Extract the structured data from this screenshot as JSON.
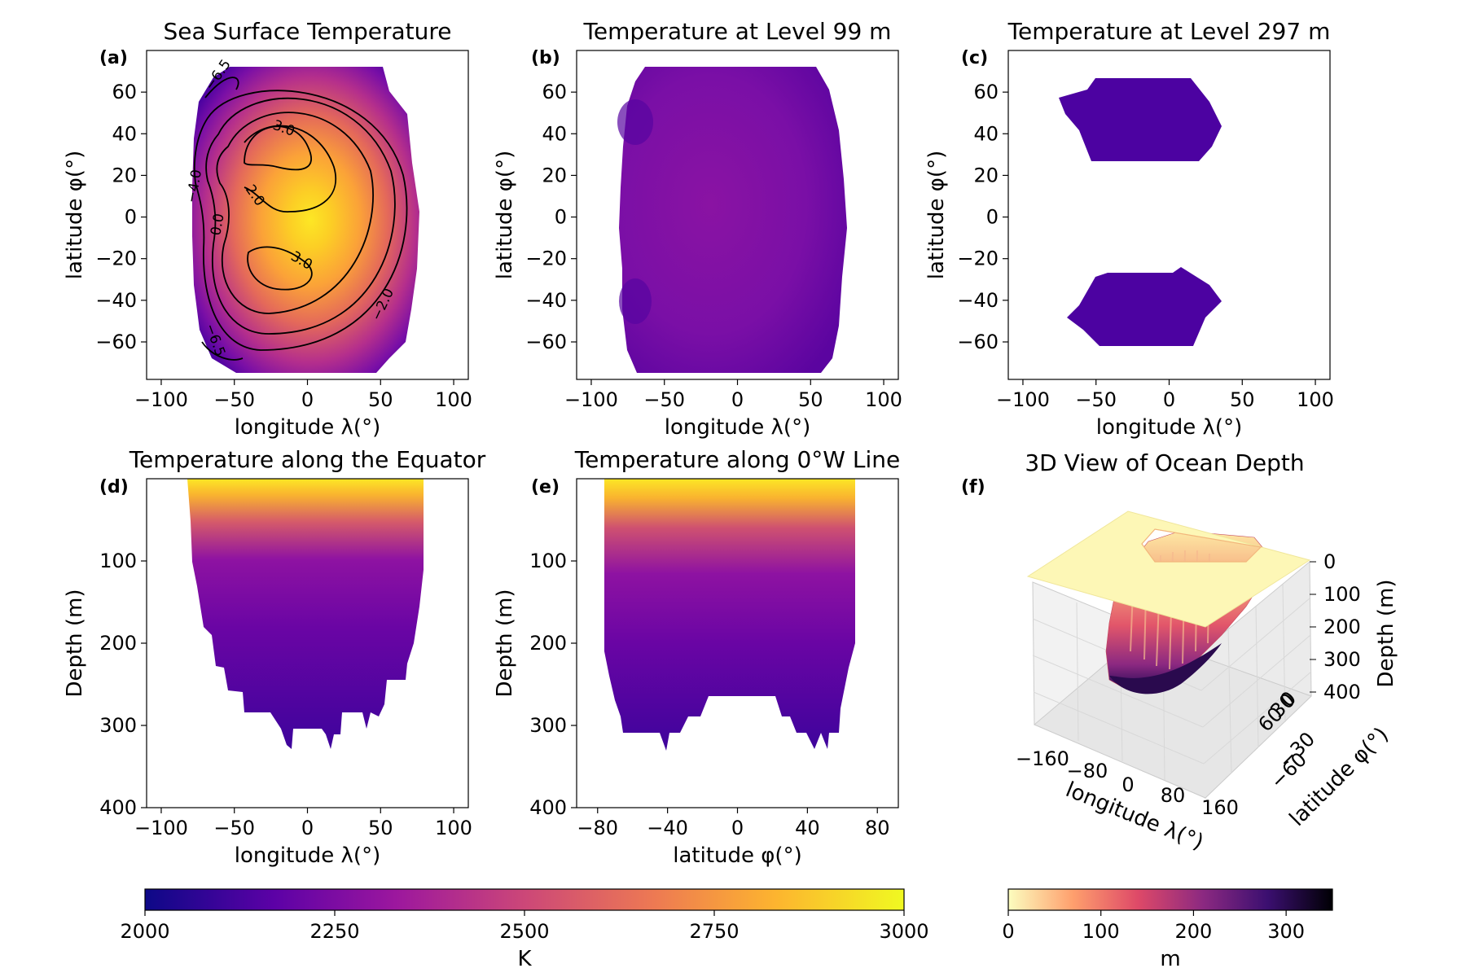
{
  "chart_data": [
    {
      "type": "heatmap",
      "panel": "(a)",
      "title": "Sea Surface Temperature",
      "xlabel": "longitude λ(°)",
      "ylabel": "latitude φ(°)",
      "xlim": [
        -110,
        110
      ],
      "ylim": [
        -78,
        80
      ],
      "xticks": [
        "−100",
        "−50",
        "0",
        "50",
        "100"
      ],
      "yticks": [
        "60",
        "40",
        "20",
        "0",
        "−20",
        "−40",
        "−60"
      ],
      "colormap": "plasma",
      "colorbar": "K",
      "field_extent": {
        "lon": [
          -80,
          80
        ],
        "lat": [
          -77,
          76
        ]
      },
      "warm_center": {
        "lon": 0,
        "lat": 0
      },
      "contour_labels": [
        "3.0",
        "2.0",
        "0.0",
        "3.0",
        "−2.0",
        "−4.0",
        "−6.5",
        "−6.5"
      ]
    },
    {
      "type": "heatmap",
      "panel": "(b)",
      "title": "Temperature at Level 99 m",
      "xlabel": "longitude λ(°)",
      "ylabel": "latitude φ(°)",
      "xlim": [
        -110,
        110
      ],
      "ylim": [
        -78,
        80
      ],
      "xticks": [
        "−100",
        "−50",
        "0",
        "50",
        "100"
      ],
      "yticks": [
        "60",
        "40",
        "20",
        "0",
        "−20",
        "−40",
        "−60"
      ],
      "colormap": "plasma",
      "field_extent": {
        "lon": [
          -78,
          78
        ],
        "lat": [
          -77,
          77
        ]
      }
    },
    {
      "type": "heatmap",
      "panel": "(c)",
      "title": "Temperature at Level 297 m",
      "xlabel": "longitude λ(°)",
      "ylabel": "latitude φ(°)",
      "xlim": [
        -110,
        110
      ],
      "ylim": [
        -78,
        80
      ],
      "xticks": [
        "−100",
        "−50",
        "0",
        "50",
        "100"
      ],
      "yticks": [
        "60",
        "40",
        "20",
        "0",
        "−20",
        "−40",
        "−60"
      ],
      "colormap": "plasma",
      "regions": [
        {
          "lon": [
            -70,
            33
          ],
          "lat": [
            25,
            65
          ]
        },
        {
          "lon": [
            -70,
            33
          ],
          "lat": [
            -65,
            -28
          ]
        }
      ]
    },
    {
      "type": "heatmap",
      "panel": "(d)",
      "title": "Temperature along the Equator",
      "xlabel": "longitude λ(°)",
      "ylabel": "Depth (m)",
      "xlim": [
        -110,
        110
      ],
      "ylim": [
        400,
        0
      ],
      "xticks": [
        "−100",
        "0",
        "50",
        "100",
        "−50"
      ],
      "yticks": [
        "100",
        "200",
        "300",
        "400"
      ],
      "colormap": "plasma",
      "field_extent": {
        "lon": [
          -82,
          80
        ],
        "depth": [
          0,
          335
        ]
      }
    },
    {
      "type": "heatmap",
      "panel": "(e)",
      "title": "Temperature along 0°W Line",
      "xlabel": "latitude φ(°)",
      "ylabel": "Depth (m)",
      "xlim": [
        -92,
        92
      ],
      "ylim": [
        400,
        0
      ],
      "xticks": [
        "−80",
        "−40",
        "0",
        "40",
        "80"
      ],
      "yticks": [
        "100",
        "200",
        "300",
        "400"
      ],
      "colormap": "plasma",
      "field_extent": {
        "lat": [
          -78,
          78
        ],
        "depth": [
          0,
          330
        ]
      }
    },
    {
      "type": "surface3d",
      "panel": "(f)",
      "title": "3D View of Ocean Depth",
      "xlabel": "longitude λ(°)",
      "ylabel": "latitude φ(°)",
      "zlabel": "Depth (m)",
      "xticks": [
        "−160",
        "−80",
        "0",
        "80",
        "160"
      ],
      "yticks": [
        "60",
        "30",
        "0",
        "−30",
        "−60"
      ],
      "zticks": [
        "0",
        "100",
        "200",
        "300",
        "400"
      ],
      "colormap": "magma_r",
      "colorbar": "m"
    }
  ],
  "colorbars": [
    {
      "name": "temperature",
      "label": "K",
      "colormap": "plasma",
      "min": 2000,
      "max": 3000,
      "ticks": [
        {
          "value": 2000,
          "text": "2000"
        },
        {
          "value": 2250,
          "text": "2250"
        },
        {
          "value": 2500,
          "text": "2500"
        },
        {
          "value": 2750,
          "text": "2750"
        },
        {
          "value": 3000,
          "text": "3000"
        }
      ]
    },
    {
      "name": "depth",
      "label": "m",
      "colormap": "magma_r",
      "min": 0,
      "max": 350,
      "ticks": [
        {
          "value": 0,
          "text": "0"
        },
        {
          "value": 100,
          "text": "100"
        },
        {
          "value": 200,
          "text": "200"
        },
        {
          "value": 300,
          "text": "300"
        }
      ]
    }
  ],
  "colors": {
    "plasma": [
      "#0d0887",
      "#5c01a6",
      "#9c179e",
      "#cc4778",
      "#ed7953",
      "#fdb42f",
      "#f0f921"
    ],
    "magma_r": [
      "#fcfdbf",
      "#fe9f6d",
      "#de4968",
      "#8c2981",
      "#3b0f70",
      "#000004"
    ]
  }
}
